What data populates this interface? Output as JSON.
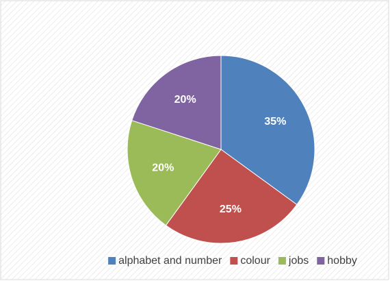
{
  "chart_data": {
    "type": "pie",
    "categories": [
      "alphabet and number",
      "colour",
      "jobs",
      "hobby"
    ],
    "values": [
      35,
      25,
      20,
      20
    ],
    "value_labels": [
      "35%",
      "25%",
      "20%",
      "20%"
    ],
    "colors": [
      "#4f81bd",
      "#c0504d",
      "#9bbb59",
      "#8064a2"
    ],
    "legend": "bottom"
  }
}
